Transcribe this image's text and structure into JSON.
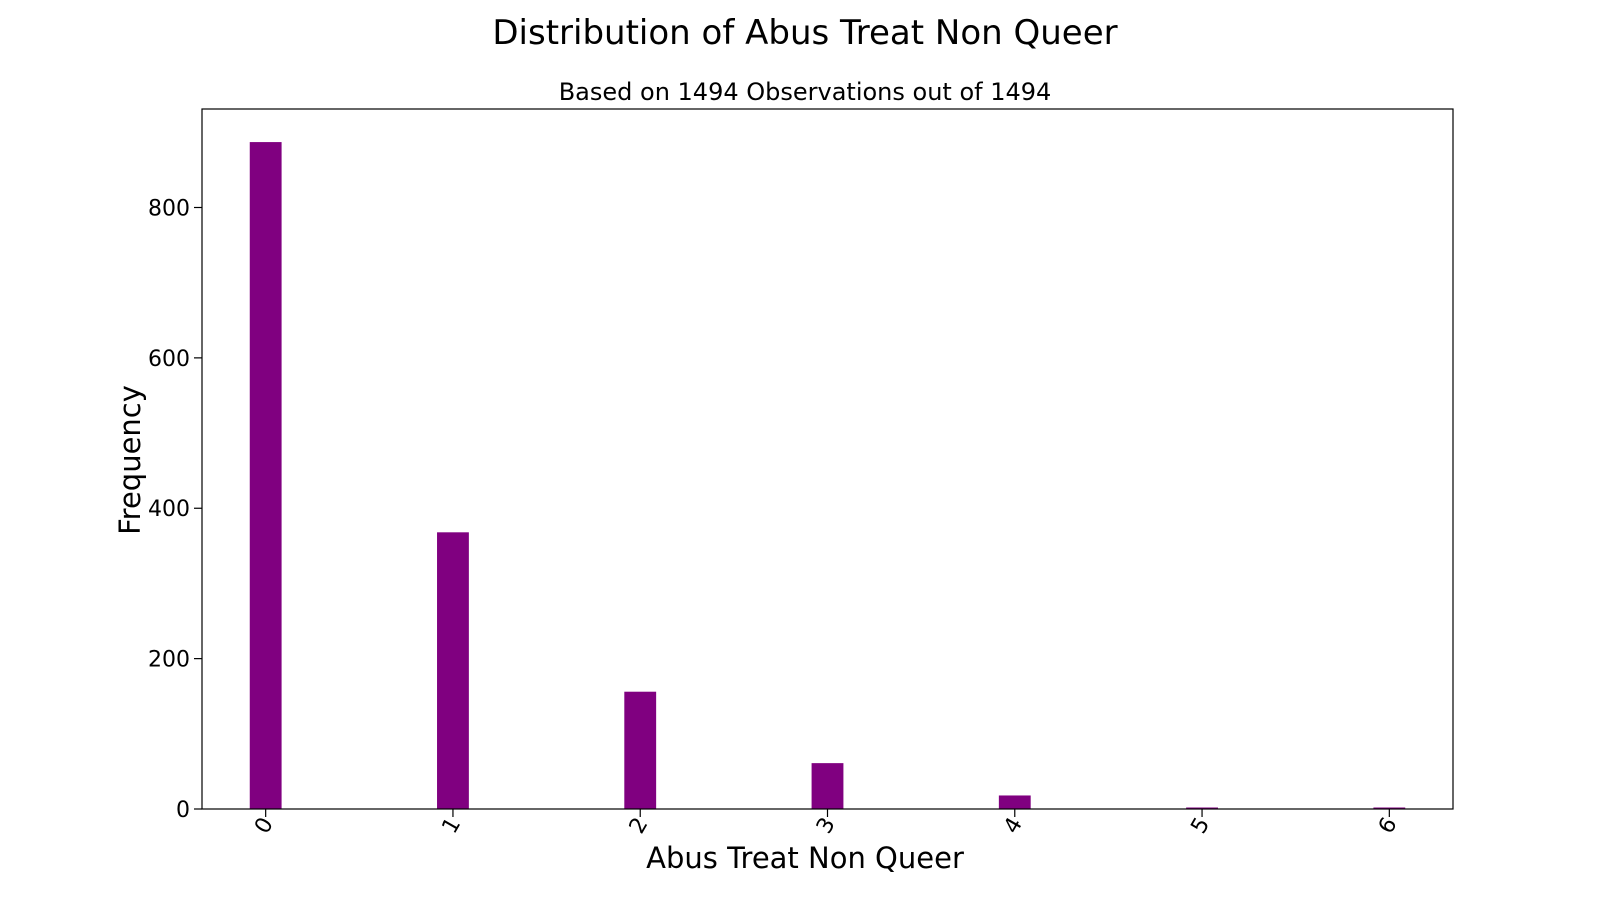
{
  "chart_data": {
    "type": "bar",
    "title": "Distribution of Abus Treat Non Queer",
    "subtitle": "Based on 1494 Observations out of 1494",
    "xlabel": "Abus Treat Non Queer",
    "ylabel": "Frequency",
    "x": [
      0,
      1,
      2,
      3,
      4,
      5,
      6
    ],
    "x_tick_labels": [
      "0",
      "1",
      "2",
      "3",
      "4",
      "5",
      "6"
    ],
    "values": [
      887,
      368,
      156,
      61,
      18,
      2,
      2
    ],
    "xlim": [
      -0.34,
      6.34
    ],
    "ylim": [
      0,
      931
    ],
    "y_ticks": [
      0,
      200,
      400,
      600,
      800
    ],
    "bar_width": 0.17,
    "grid": false,
    "bar_color": "#800080"
  }
}
